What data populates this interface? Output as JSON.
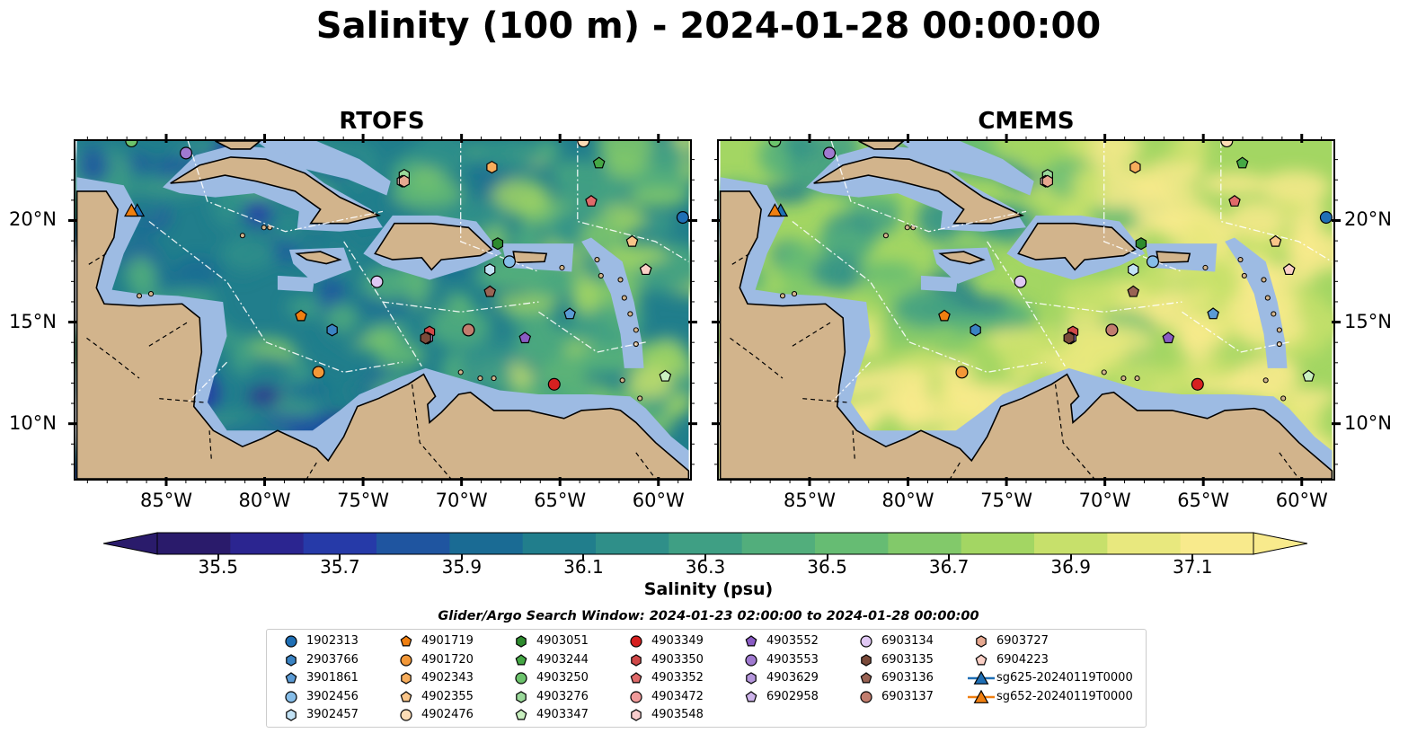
{
  "title": "Salinity (100 m) - 2024-01-28 00:00:00",
  "panels": [
    {
      "title": "RTOFS"
    },
    {
      "title": "CMEMS"
    }
  ],
  "chart_data": {
    "type": "heatmap",
    "title": "Salinity (100 m) - 2024-01-28 00:00:00",
    "subplots": [
      "RTOFS",
      "CMEMS"
    ],
    "xlim": [
      -89.7,
      -58.3
    ],
    "ylim": [
      7.2,
      24.0
    ],
    "x_ticks": [
      -85,
      -80,
      -75,
      -70,
      -65,
      -60
    ],
    "x_tick_labels": [
      "85°W",
      "80°W",
      "75°W",
      "70°W",
      "65°W",
      "60°W"
    ],
    "y_ticks": [
      20,
      15,
      10
    ],
    "y_tick_labels": [
      "20°N",
      "15°N",
      "10°N"
    ],
    "colorbar": {
      "label": "Salinity (psu)",
      "ticks": [
        35.5,
        35.7,
        35.9,
        36.1,
        36.3,
        36.5,
        36.7,
        36.9,
        37.1
      ],
      "tick_labels": [
        "35.5",
        "35.7",
        "35.9",
        "36.1",
        "36.3",
        "36.5",
        "36.7",
        "36.9",
        "37.1"
      ],
      "range": [
        35.4,
        37.2
      ],
      "extend": "both",
      "colors": [
        "#2a1b6b",
        "#2b2590",
        "#263aa8",
        "#1f55a0",
        "#1a6b94",
        "#217e8c",
        "#2f8f89",
        "#3f9f84",
        "#52ae7c",
        "#66bc73",
        "#82c96a",
        "#a3d663",
        "#c7e06b",
        "#e8e87e",
        "#f8ea8c"
      ]
    },
    "search_window": "Glider/Argo Search Window: 2024-01-23 02:00:00 to 2024-01-28 00:00:00",
    "legend_entries": [
      {
        "label": "1902313",
        "marker": "circle",
        "color": "#1f6fb5"
      },
      {
        "label": "2903766",
        "marker": "hexagon",
        "color": "#3a83c3"
      },
      {
        "label": "3901861",
        "marker": "pentagon",
        "color": "#5b9bd5"
      },
      {
        "label": "3902456",
        "marker": "circle",
        "color": "#86bde8"
      },
      {
        "label": "3902457",
        "marker": "hexagon",
        "color": "#c2e2f5"
      },
      {
        "label": "4901719",
        "marker": "pentagon",
        "color": "#f07f10"
      },
      {
        "label": "4901720",
        "marker": "circle",
        "color": "#f39838"
      },
      {
        "label": "4902343",
        "marker": "hexagon",
        "color": "#f7ad5c"
      },
      {
        "label": "4902355",
        "marker": "pentagon",
        "color": "#f9c589"
      },
      {
        "label": "4902476",
        "marker": "circle",
        "color": "#fcdcb5"
      },
      {
        "label": "4903051",
        "marker": "hexagon",
        "color": "#2e8b2e"
      },
      {
        "label": "4903244",
        "marker": "pentagon",
        "color": "#45a845"
      },
      {
        "label": "4903250",
        "marker": "circle",
        "color": "#6cc36c"
      },
      {
        "label": "4903276",
        "marker": "hexagon",
        "color": "#9ad99a"
      },
      {
        "label": "4903347",
        "marker": "pentagon",
        "color": "#c9f0c0"
      },
      {
        "label": "4903349",
        "marker": "circle",
        "color": "#d62020"
      },
      {
        "label": "4903350",
        "marker": "hexagon",
        "color": "#d04848"
      },
      {
        "label": "4903352",
        "marker": "pentagon",
        "color": "#e06a6a"
      },
      {
        "label": "4903472",
        "marker": "circle",
        "color": "#f09a9a"
      },
      {
        "label": "4903548",
        "marker": "hexagon",
        "color": "#f8cccc"
      },
      {
        "label": "4903552",
        "marker": "pentagon",
        "color": "#8a5cc4"
      },
      {
        "label": "4903553",
        "marker": "circle",
        "color": "#a07ad0"
      },
      {
        "label": "4903629",
        "marker": "hexagon",
        "color": "#b596dc"
      },
      {
        "label": "6902958",
        "marker": "pentagon",
        "color": "#cdb3ea"
      },
      {
        "label": "6903134",
        "marker": "circle",
        "color": "#e0c8f4"
      },
      {
        "label": "6903135",
        "marker": "hexagon",
        "color": "#7a4a3a"
      },
      {
        "label": "6903136",
        "marker": "pentagon",
        "color": "#9a6354"
      },
      {
        "label": "6903137",
        "marker": "circle",
        "color": "#c27d6e"
      },
      {
        "label": "sg625-20240119T0000",
        "marker": "triangle-line",
        "color": "#1f6fb5"
      },
      {
        "label": "sg652-20240119T0000",
        "marker": "triangle-line",
        "color": "#f07f10"
      },
      {
        "label": "6903727",
        "marker": "hexagon",
        "color": "#e6a890"
      },
      {
        "label": "6904223",
        "marker": "pentagon",
        "color": "#fbd0c6"
      }
    ],
    "points": [
      {
        "id": "1902313",
        "lon": -58.6,
        "lat": 20.2
      },
      {
        "id": "2903766",
        "lon": -76.6,
        "lat": 14.6
      },
      {
        "id": "3901861",
        "lon": -64.4,
        "lat": 15.4
      },
      {
        "id": "3902456",
        "lon": -67.5,
        "lat": 18.0
      },
      {
        "id": "3902457",
        "lon": -68.5,
        "lat": 17.6
      },
      {
        "id": "4901719",
        "lon": -78.2,
        "lat": 15.3
      },
      {
        "id": "4901720",
        "lon": -77.3,
        "lat": 12.5
      },
      {
        "id": "4902343",
        "lon": -68.4,
        "lat": 22.7
      },
      {
        "id": "4902355",
        "lon": -61.2,
        "lat": 19.0
      },
      {
        "id": "4902476",
        "lon": -63.7,
        "lat": 24.0
      },
      {
        "id": "4903051",
        "lon": -68.1,
        "lat": 18.9
      },
      {
        "id": "4903244",
        "lon": -62.9,
        "lat": 22.9
      },
      {
        "id": "4903250",
        "lon": -86.9,
        "lat": 24.0
      },
      {
        "id": "4903276",
        "lon": -72.9,
        "lat": 22.3
      },
      {
        "id": "4903347",
        "lon": -59.5,
        "lat": 12.3
      },
      {
        "id": "4903349",
        "lon": -65.2,
        "lat": 11.9
      },
      {
        "id": "4903350",
        "lon": -71.6,
        "lat": 14.5
      },
      {
        "id": "4903352",
        "lon": -63.3,
        "lat": 21.0
      },
      {
        "id": "4903472",
        "lon": -69.6,
        "lat": 14.6
      },
      {
        "id": "4903548",
        "lon": -73.0,
        "lat": 22.0
      },
      {
        "id": "4903552",
        "lon": -66.7,
        "lat": 14.2
      },
      {
        "id": "4903553",
        "lon": -84.1,
        "lat": 23.4
      },
      {
        "id": "4903629",
        "lon": -71.7,
        "lat": 14.2
      },
      {
        "id": "6902958",
        "lon": -60.5,
        "lat": 17.6
      },
      {
        "id": "6903134",
        "lon": -74.3,
        "lat": 17.0
      },
      {
        "id": "6903135",
        "lon": -71.8,
        "lat": 14.2
      },
      {
        "id": "6903136",
        "lon": -68.5,
        "lat": 16.5
      },
      {
        "id": "6903137",
        "lon": -69.6,
        "lat": 14.6
      },
      {
        "id": "6903727",
        "lon": -72.9,
        "lat": 22.0
      },
      {
        "id": "6904223",
        "lon": -60.5,
        "lat": 17.6
      }
    ],
    "gliders": [
      {
        "id": "sg625-20240119T0000",
        "lon": -86.6,
        "lat": 20.5
      },
      {
        "id": "sg652-20240119T0000",
        "lon": -86.9,
        "lat": 20.5
      }
    ]
  }
}
